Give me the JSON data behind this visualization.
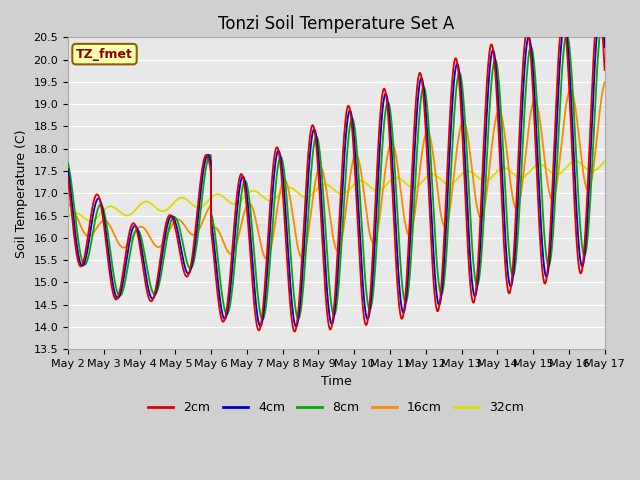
{
  "title": "Tonzi Soil Temperature Set A",
  "xlabel": "Time",
  "ylabel": "Soil Temperature (C)",
  "ylim": [
    13.5,
    20.5
  ],
  "xlim": [
    0,
    360
  ],
  "annotation": "TZ_fmet",
  "legend_labels": [
    "2cm",
    "4cm",
    "8cm",
    "16cm",
    "32cm"
  ],
  "legend_colors": [
    "#dd0000",
    "#0000cc",
    "#00aa00",
    "#ff8800",
    "#dddd00"
  ],
  "xtick_labels": [
    "May 2",
    "May 3",
    "May 4",
    "May 5",
    "May 6",
    "May 7",
    "May 8",
    "May 9",
    "May 10",
    "May 11",
    "May 12",
    "May 13",
    "May 14",
    "May 15",
    "May 16",
    "May 17"
  ],
  "plot_bg": "#e8e8e8",
  "fig_bg": "#d0d0d0",
  "grid_color": "#ffffff",
  "line_width": 1.3,
  "n_points": 1440
}
